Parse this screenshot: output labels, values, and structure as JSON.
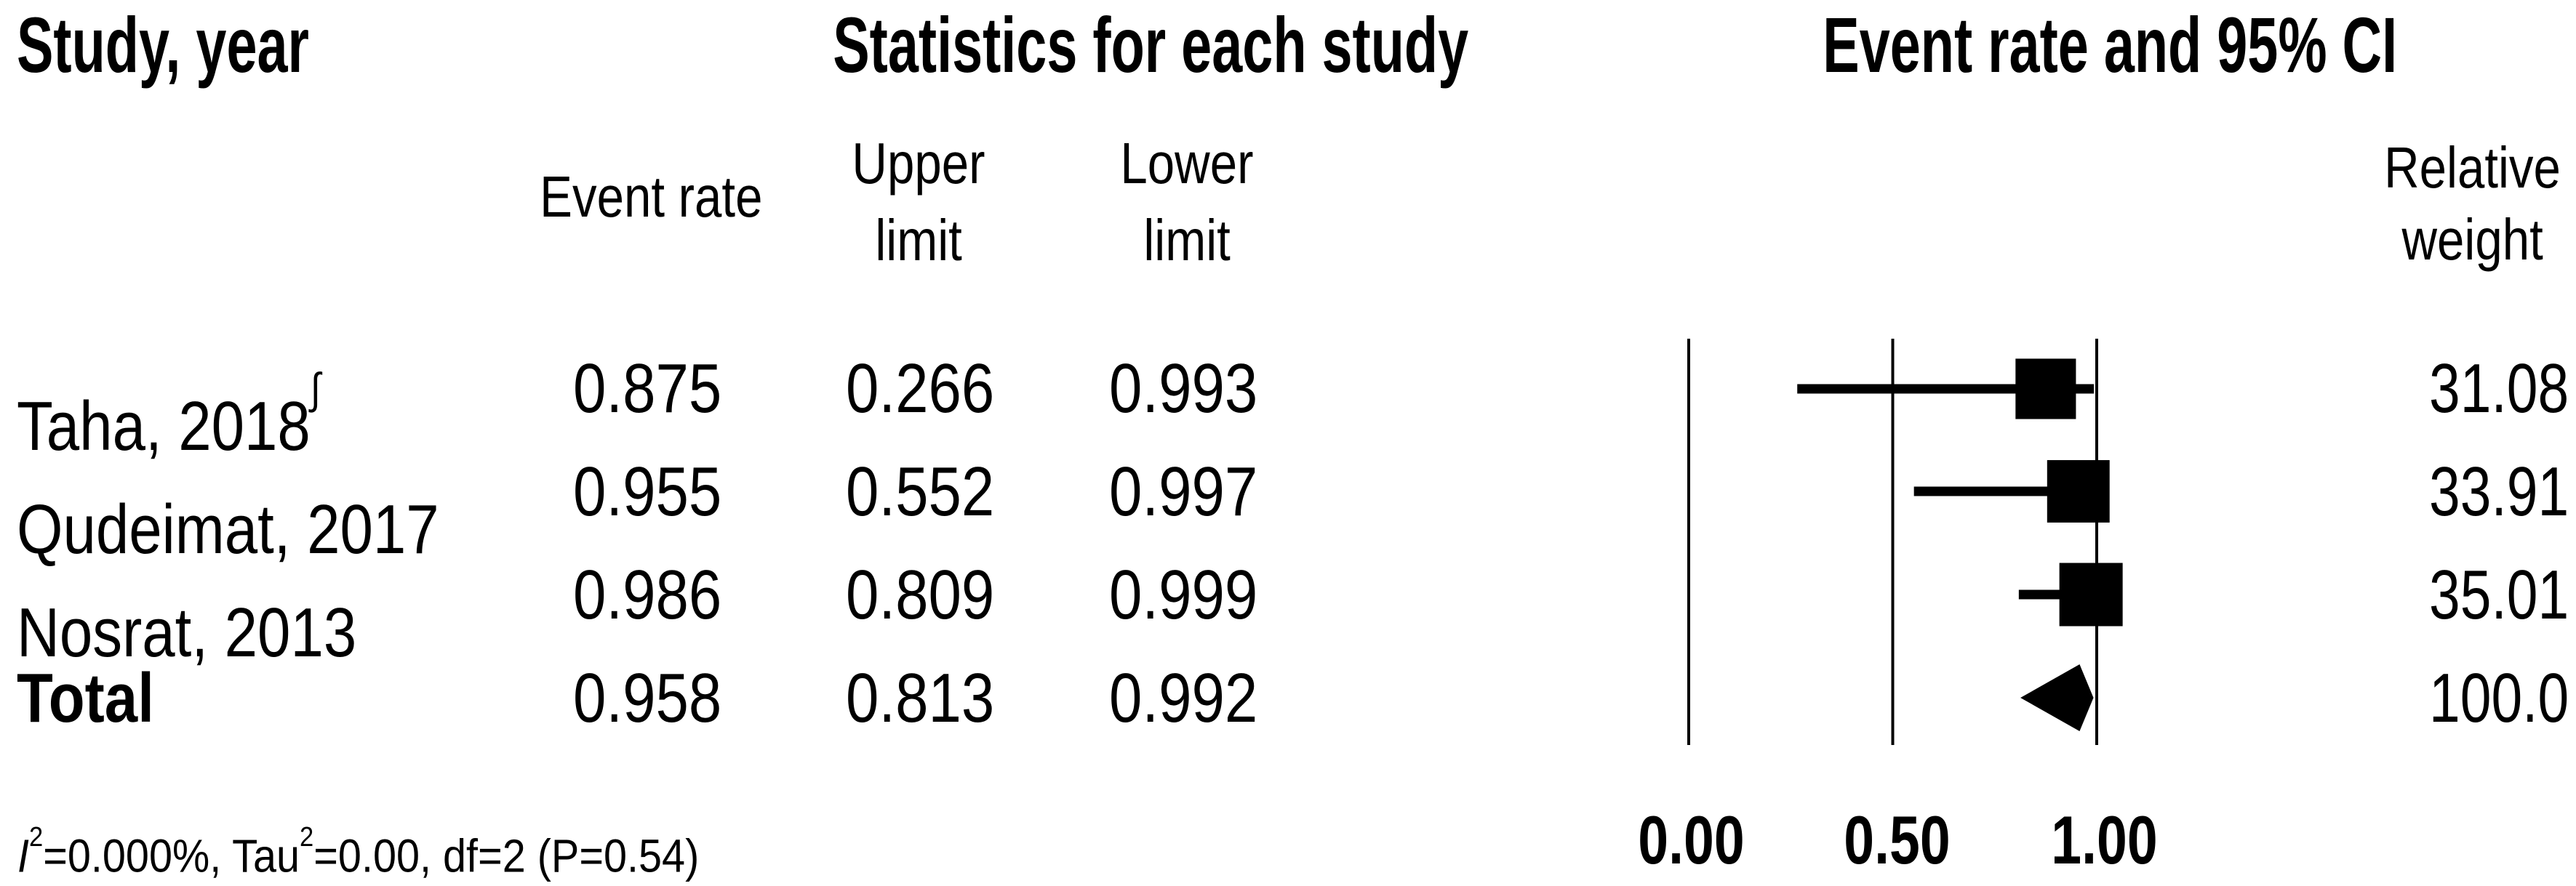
{
  "header": {
    "study_col": "Study, year",
    "stats_col": "Statistics for each study",
    "plot_col": "Event rate and 95% CI",
    "sub": {
      "event_rate": "Event rate",
      "upper_line1": "Upper",
      "upper_line2": "limit",
      "lower_line1": "Lower",
      "lower_line2": "limit",
      "weight_line1": "Relative",
      "weight_line2": "weight"
    }
  },
  "rows": [
    {
      "study": "Taha, 2018",
      "superscript": "∫",
      "event_rate": "0.875",
      "upper_limit": "0.266",
      "lower_limit": "0.993",
      "weight": "31.08"
    },
    {
      "study": "Qudeimat, 2017",
      "superscript": "",
      "event_rate": "0.955",
      "upper_limit": "0.552",
      "lower_limit": "0.997",
      "weight": "33.91"
    },
    {
      "study": "Nosrat, 2013",
      "superscript": "",
      "event_rate": "0.986",
      "upper_limit": "0.809",
      "lower_limit": "0.999",
      "weight": "35.01"
    },
    {
      "study": "Total",
      "superscript": "",
      "event_rate": "0.958",
      "upper_limit": "0.813",
      "lower_limit": "0.992",
      "weight": "100.0"
    }
  ],
  "footnote": {
    "i": "I",
    "i_sup": "2",
    "seg1": "=0.000%, Tau",
    "tau_sup": "2",
    "seg2": "=0.00, df=2 (P=0.54)"
  },
  "axis": {
    "ticks": [
      "0.00",
      "0.50",
      "1.00"
    ]
  },
  "chart_data": {
    "type": "forest",
    "title": "Event rate and 95% CI",
    "x_axis": {
      "range": [
        0.0,
        1.0
      ],
      "ticks": [
        0.0,
        0.5,
        1.0
      ],
      "tick_labels": [
        "0.00",
        "0.50",
        "1.00"
      ],
      "gridlines": true
    },
    "columns": [
      "Study, year",
      "Event rate",
      "Upper limit",
      "Lower limit",
      "Relative weight"
    ],
    "studies": [
      {
        "label": "Taha, 2018",
        "footnote_mark": "∫",
        "event_rate": 0.875,
        "ci": [
          0.266,
          0.993
        ],
        "weight": 31.08
      },
      {
        "label": "Qudeimat, 2017",
        "footnote_mark": "",
        "event_rate": 0.955,
        "ci": [
          0.552,
          0.997
        ],
        "weight": 33.91
      },
      {
        "label": "Nosrat, 2013",
        "footnote_mark": "",
        "event_rate": 0.986,
        "ci": [
          0.809,
          0.999
        ],
        "weight": 35.01
      }
    ],
    "pooled": {
      "label": "Total",
      "event_rate": 0.958,
      "ci": [
        0.813,
        0.992
      ],
      "weight": 100.0
    },
    "heterogeneity": "I2=0.000%, Tau2=0.00, df=2 (P=0.54)",
    "marker_shape_studies": "square",
    "marker_shape_pooled": "diamond",
    "colors": {
      "marker": "#000000",
      "text": "#000000",
      "background": "#ffffff"
    }
  }
}
